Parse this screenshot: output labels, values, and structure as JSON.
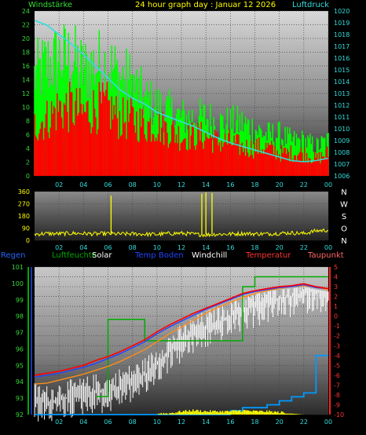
{
  "colors": {
    "wind_avg": "#ff0000",
    "wind_gust": "#00ff00",
    "pressure": "#33dddd",
    "direction": "#ffff00",
    "humidity": "#00aa00",
    "temperature": "#ff0000",
    "dewpoint": "#ff8c1a",
    "windchill": "#ffffff",
    "soil_temp": "#2244ff",
    "solar": "#ffff00",
    "rain": "#0099ff"
  },
  "chart_data": [
    {
      "type": "line",
      "title": "24 hour graph day : Januar 12 2026",
      "ylabel_left": "Windstärke",
      "ylabel_right": "Luftdruck",
      "x_ticks": [
        "02",
        "04",
        "06",
        "08",
        "10",
        "12",
        "14",
        "16",
        "18",
        "20",
        "22",
        "00"
      ],
      "ylim_left": [
        0,
        24
      ],
      "y_ticks_left": [
        "0",
        "2",
        "4",
        "6",
        "8",
        "10",
        "12",
        "14",
        "16",
        "18",
        "20",
        "22",
        "24"
      ],
      "ylim_right": [
        1006,
        1020
      ],
      "y_ticks_right": [
        "1006",
        "1007",
        "1008",
        "1009",
        "1010",
        "1011",
        "1012",
        "1013",
        "1014",
        "1015",
        "1016",
        "1017",
        "1018",
        "1019",
        "1020"
      ],
      "x": [
        "00:00",
        "01:00",
        "02:00",
        "03:00",
        "04:00",
        "05:00",
        "06:00",
        "07:00",
        "08:00",
        "09:00",
        "10:00",
        "11:00",
        "12:00",
        "13:00",
        "14:00",
        "15:00",
        "16:00",
        "17:00",
        "18:00",
        "19:00",
        "20:00",
        "21:00",
        "22:00",
        "23:00",
        "00:00"
      ],
      "series": [
        {
          "name": "Windstärke",
          "axis": "left",
          "values": [
            9,
            10,
            12,
            12,
            11,
            12,
            12,
            10,
            10,
            9,
            9,
            8,
            7,
            7,
            7,
            6,
            6,
            5,
            5,
            5,
            4,
            4,
            4,
            3,
            4
          ]
        },
        {
          "name": "Böen",
          "axis": "left",
          "values": [
            17,
            19,
            20,
            20,
            18,
            19,
            19,
            17,
            16,
            13,
            12,
            11,
            10,
            10,
            10,
            9,
            9,
            9,
            8,
            7,
            7,
            6,
            6,
            5,
            6
          ]
        },
        {
          "name": "Luftdruck",
          "axis": "right",
          "values": [
            1019.2,
            1018.8,
            1018.0,
            1017.2,
            1016.3,
            1015.3,
            1014.3,
            1013.3,
            1012.6,
            1012.1,
            1011.4,
            1011.0,
            1010.6,
            1010.2,
            1009.7,
            1009.2,
            1008.8,
            1008.5,
            1008.2,
            1007.9,
            1007.6,
            1007.3,
            1007.2,
            1007.3,
            1007.5
          ]
        }
      ]
    },
    {
      "type": "line",
      "ylim": [
        0,
        360
      ],
      "y_ticks": [
        "0",
        "90",
        "180",
        "270",
        "360"
      ],
      "compass_labels": [
        "N",
        "W",
        "S",
        "O",
        "N"
      ],
      "x_ticks": [
        "02",
        "04",
        "06",
        "08",
        "10",
        "12",
        "14",
        "16",
        "18",
        "20",
        "22",
        "00"
      ],
      "series": [
        {
          "name": "Windrichtung",
          "values": [
            45,
            50,
            48,
            52,
            50,
            47,
            49,
            46,
            48,
            45,
            44,
            50,
            52,
            45,
            40,
            45,
            46,
            50,
            48,
            47,
            52,
            55,
            50,
            70,
            75
          ]
        }
      ],
      "spikes": [
        {
          "x": "06:15",
          "value": 330
        },
        {
          "x": "13:40",
          "value": 345
        },
        {
          "x": "14:00",
          "value": 355
        },
        {
          "x": "14:30",
          "value": 350
        }
      ]
    },
    {
      "type": "line",
      "legend": [
        "Regen",
        "Luftfeuchte",
        "Solar",
        "Temp Boden",
        "Windchill",
        "Temperatur",
        "Taupunkt"
      ],
      "x_ticks": [
        "02",
        "04",
        "06",
        "08",
        "10",
        "12",
        "14",
        "16",
        "18",
        "20",
        "22",
        "00"
      ],
      "ylim_left": [
        92,
        101
      ],
      "y_ticks_left": [
        "92",
        "93",
        "94",
        "95",
        "96",
        "97",
        "98",
        "99",
        "100",
        "101"
      ],
      "ylim_right": [
        -10,
        5
      ],
      "y_ticks_right": [
        "5",
        "4",
        "3",
        "2",
        "1",
        "0",
        "-1",
        "-2",
        "-3",
        "-4",
        "-5",
        "-6",
        "-7",
        "-8",
        "-9",
        "-10"
      ],
      "series": [
        {
          "name": "Temperatur",
          "axis": "right",
          "values": [
            -6.0,
            -5.8,
            -5.6,
            -5.3,
            -5.0,
            -4.5,
            -4.1,
            -3.6,
            -3.0,
            -2.4,
            -1.6,
            -0.9,
            -0.3,
            0.3,
            0.8,
            1.3,
            1.8,
            2.3,
            2.6,
            2.8,
            3.0,
            3.1,
            3.3,
            3.0,
            2.8
          ]
        },
        {
          "name": "Temp Boden",
          "axis": "right",
          "values": [
            -6.2,
            -6.0,
            -5.8,
            -5.5,
            -5.2,
            -4.8,
            -4.3,
            -3.8,
            -3.2,
            -2.6,
            -1.8,
            -1.1,
            -0.5,
            0.1,
            0.7,
            1.2,
            1.7,
            2.2,
            2.5,
            2.7,
            2.9,
            3.0,
            3.2,
            2.9,
            2.8
          ]
        },
        {
          "name": "Taupunkt",
          "axis": "right",
          "values": [
            -6.9,
            -6.8,
            -6.5,
            -6.2,
            -5.9,
            -5.5,
            -5.1,
            -4.6,
            -4.0,
            -3.4,
            -2.6,
            -1.8,
            -1.1,
            -0.4,
            0.3,
            0.9,
            1.4,
            1.9,
            2.3,
            2.6,
            2.8,
            3.0,
            3.1,
            2.9,
            2.7
          ]
        },
        {
          "name": "Windchill",
          "axis": "right",
          "values": [
            -8.5,
            -8.8,
            -8.4,
            -8.2,
            -8.0,
            -7.6,
            -7.8,
            -7.0,
            -6.6,
            -6.0,
            -4.8,
            -3.5,
            -2.6,
            -1.8,
            -1.2,
            -0.6,
            0.0,
            0.6,
            1.0,
            1.4,
            1.8,
            2.0,
            2.4,
            2.6,
            2.6
          ]
        },
        {
          "name": "Luftfeuchte",
          "axis": "left",
          "values": [
            null,
            null,
            null,
            null,
            null,
            93.1,
            97.8,
            97.8,
            97.8,
            96.5,
            96.5,
            96.5,
            96.5,
            96.5,
            96.5,
            96.5,
            96.5,
            99.8,
            100.4,
            100.4,
            100.4,
            100.4,
            100.4,
            100.4,
            100.4
          ]
        },
        {
          "name": "Regen",
          "axis": "right",
          "values": [
            -10,
            -10,
            -10,
            -10,
            -10,
            -10,
            -10,
            -10,
            -10,
            -10,
            -10,
            -10,
            -10,
            -10,
            -10,
            -10,
            -9.6,
            -9.3,
            -9.3,
            -9.0,
            -8.6,
            -8.2,
            -7.8,
            -4.0,
            -4.0
          ]
        },
        {
          "name": "Solar",
          "axis": "right",
          "values": [
            -10,
            -10,
            -10,
            -10,
            -10,
            -10,
            -10,
            -10,
            -10,
            -10,
            -10,
            -10,
            -9.8,
            -9.7,
            -9.8,
            -9.8,
            -9.8,
            -9.7,
            -9.8,
            -9.8,
            -9.9,
            -9.9,
            -10,
            -10,
            -10
          ]
        }
      ]
    }
  ]
}
